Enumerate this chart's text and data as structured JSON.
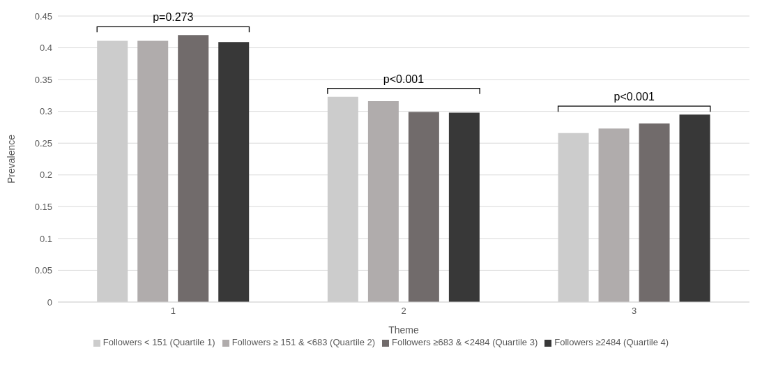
{
  "chart_data": {
    "type": "bar",
    "xlabel": "Theme",
    "ylabel": "Prevalence",
    "categories": [
      "1",
      "2",
      "3"
    ],
    "series": [
      {
        "name": "Followers < 151 (Quartile 1)",
        "color": "#cccccc",
        "values": [
          0.411,
          0.323,
          0.266
        ]
      },
      {
        "name": "Followers ≥ 151 & <683 (Quartile 2)",
        "color": "#b0acac",
        "values": [
          0.411,
          0.316,
          0.273
        ]
      },
      {
        "name": "Followers ≥683 & <2484 (Quartile 3)",
        "color": "#716b6b",
        "values": [
          0.42,
          0.299,
          0.281
        ]
      },
      {
        "name": "Followers ≥2484 (Quartile 4)",
        "color": "#383838",
        "values": [
          0.409,
          0.298,
          0.295
        ]
      }
    ],
    "ylim": [
      0,
      0.45
    ],
    "yticks": [
      0,
      0.05,
      0.1,
      0.15,
      0.2,
      0.25,
      0.3,
      0.35,
      0.4,
      0.45
    ],
    "grid": "y",
    "legend": "bottom",
    "annotations": [
      "p=0.273",
      "p<0.001",
      "p<0.001"
    ]
  }
}
